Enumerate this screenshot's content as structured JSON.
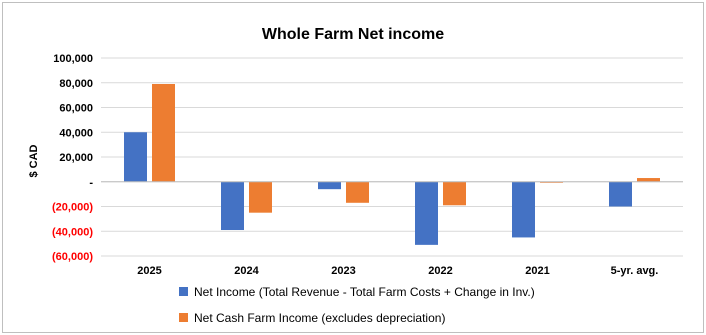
{
  "chart_data": {
    "type": "bar",
    "title": "Whole Farm Net income",
    "ylabel": "$ CAD",
    "xlabel": "",
    "categories": [
      "2025",
      "2024",
      "2023",
      "2022",
      "2021",
      "5-yr. avg."
    ],
    "series": [
      {
        "name": "Net Income (Total Revenue - Total Farm Costs + Change in Inv.)",
        "color": "#4472C4",
        "values": [
          40000,
          -39000,
          -6000,
          -51000,
          -45000,
          -20000
        ]
      },
      {
        "name": "Net Cash Farm Income (excludes depreciation)",
        "color": "#ED7D31",
        "values": [
          79000,
          -25000,
          -17000,
          -19000,
          -500,
          3000
        ]
      }
    ],
    "ylim": [
      -60000,
      100000
    ],
    "y_ticks": [
      {
        "value": 100000,
        "label": "100,000"
      },
      {
        "value": 80000,
        "label": "80,000"
      },
      {
        "value": 60000,
        "label": "60,000"
      },
      {
        "value": 40000,
        "label": "40,000"
      },
      {
        "value": 20000,
        "label": "20,000"
      },
      {
        "value": 0,
        "label": "-"
      },
      {
        "value": -20000,
        "label": "(20,000)"
      },
      {
        "value": -40000,
        "label": "(40,000)"
      },
      {
        "value": -60000,
        "label": "(60,000)"
      }
    ],
    "negative_tick_color": "#FF0000",
    "grid": true,
    "legend_position": "bottom"
  }
}
